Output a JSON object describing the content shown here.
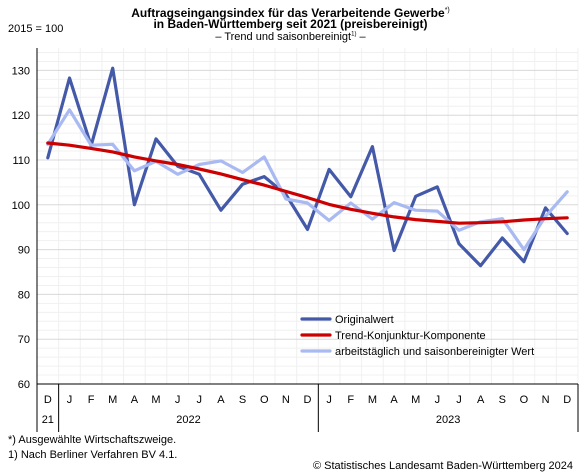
{
  "header": {
    "title_line1": "Auftragseingangsindex für das Verarbeitende Gewerbe",
    "title_line1_sup": "*)",
    "title_line2": "in Baden-Württemberg seit 2021 (preisbereinigt)",
    "subtitle_pre": "– Trend und saisonbereinigt",
    "subtitle_sup": "1)",
    "subtitle_post": " –",
    "base_label": "2015 = 100"
  },
  "footnotes": {
    "note1": "*) Ausgewählte Wirtschaftszweige.",
    "note2": "1) Nach Berliner Verfahren BV 4.1.",
    "source": "© Statistisches Landesamt Baden-Württemberg 2024"
  },
  "chart_data": {
    "type": "line",
    "categories": [
      "D",
      "J",
      "F",
      "M",
      "A",
      "M",
      "J",
      "J",
      "A",
      "S",
      "O",
      "N",
      "D",
      "J",
      "F",
      "M",
      "A",
      "M",
      "J",
      "J",
      "A",
      "S",
      "O",
      "N",
      "D"
    ],
    "year_labels": [
      {
        "label": "21",
        "from": 0,
        "to": 0
      },
      {
        "label": "2022",
        "from": 1,
        "to": 12
      },
      {
        "label": "2023",
        "from": 13,
        "to": 24
      }
    ],
    "ylim": [
      60,
      135
    ],
    "yticks": [
      60,
      70,
      80,
      90,
      100,
      110,
      120,
      130
    ],
    "grid": true,
    "legend_position": "bottom-right",
    "series": [
      {
        "name": "Originalwert",
        "color": "#4459a8",
        "values": [
          110.5,
          128.3,
          113.2,
          130.5,
          100.0,
          114.7,
          108.6,
          106.8,
          98.8,
          104.6,
          106.3,
          102.3,
          94.5,
          107.9,
          101.8,
          113.0,
          89.8,
          101.9,
          104.0,
          91.3,
          86.4,
          92.6,
          87.3,
          99.3,
          93.6
        ]
      },
      {
        "name": "Trend-Konjunktur-Komponente",
        "color": "#cc0000",
        "values": [
          113.8,
          113.3,
          112.6,
          111.8,
          110.7,
          109.8,
          109.0,
          108.0,
          106.9,
          105.6,
          104.4,
          103.0,
          101.6,
          100.1,
          99.0,
          98.1,
          97.3,
          96.7,
          96.3,
          95.9,
          96.0,
          96.2,
          96.6,
          96.9,
          97.1
        ]
      },
      {
        "name": "arbeitstäglich und saisonbereinigter Wert",
        "color": "#a9b9f2",
        "values": [
          113.5,
          121.2,
          113.3,
          113.5,
          107.6,
          109.7,
          106.8,
          109.0,
          109.8,
          107.2,
          110.7,
          101.3,
          100.4,
          96.5,
          100.4,
          96.8,
          100.5,
          98.8,
          98.6,
          94.3,
          96.2,
          96.9,
          90.0,
          97.4,
          102.9
        ]
      }
    ]
  }
}
